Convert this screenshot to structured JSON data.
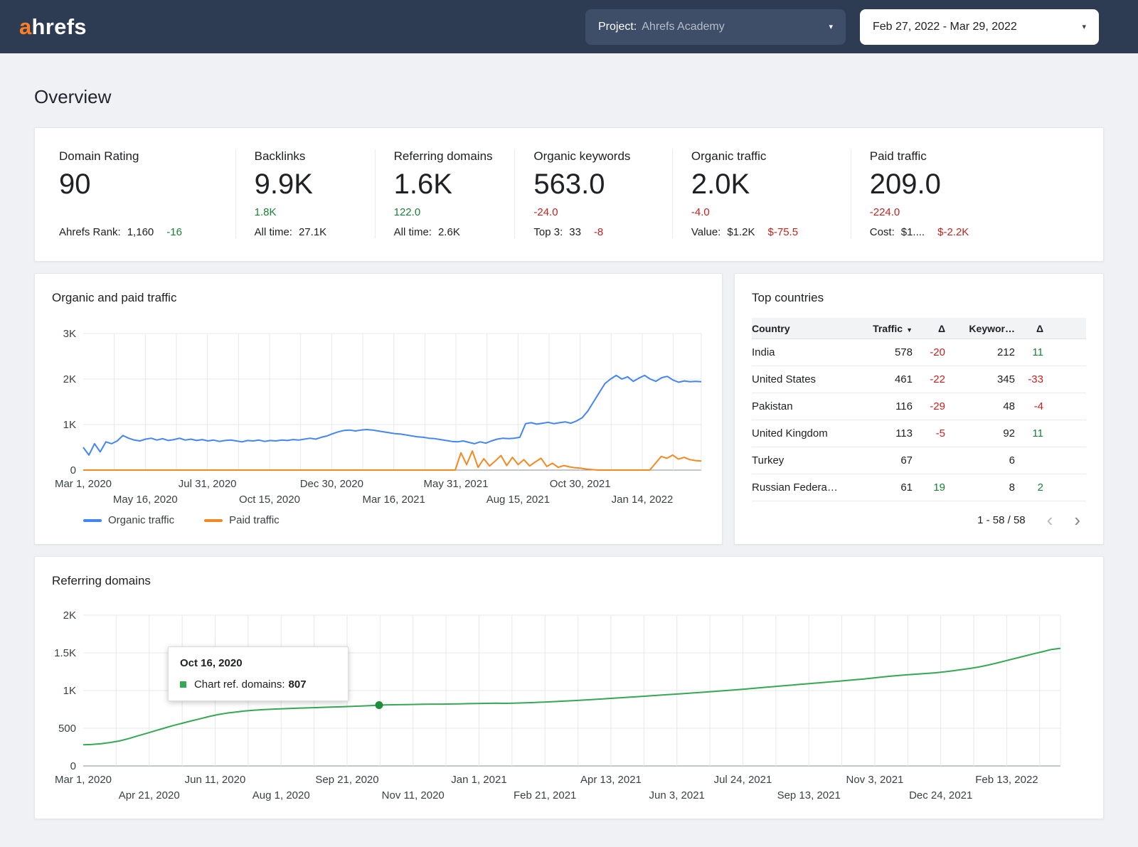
{
  "colors": {
    "navbar_bg": "#2d3b53",
    "accent_orange": "#ff8024",
    "positive_green": "#188038",
    "negative_red": "#c5221f",
    "organic_blue": "#4285f4",
    "paid_orange": "#f5891f",
    "ref_green": "#34a853"
  },
  "navbar": {
    "logo_a": "a",
    "logo_rest": "hrefs",
    "project_label": "Project:",
    "project_value": "Ahrefs Academy",
    "date_range": "Feb 27, 2022 - Mar 29, 2022"
  },
  "page_title": "Overview",
  "metrics": [
    {
      "id": "domain-rating",
      "label": "Domain Rating",
      "value": "90",
      "delta": "",
      "delta_color": "",
      "sub_label": "Ahrefs Rank:",
      "sub_value": "1,160",
      "sub_delta": "-16",
      "sub_delta_color": "green"
    },
    {
      "id": "backlinks",
      "label": "Backlinks",
      "value": "9.9K",
      "delta": "1.8K",
      "delta_color": "green",
      "sub_label": "All time:",
      "sub_value": "27.1K",
      "sub_delta": "",
      "sub_delta_color": ""
    },
    {
      "id": "referring-domains",
      "label": "Referring domains",
      "value": "1.6K",
      "delta": "122.0",
      "delta_color": "green",
      "sub_label": "All time:",
      "sub_value": "2.6K",
      "sub_delta": "",
      "sub_delta_color": ""
    },
    {
      "id": "organic-keywords",
      "label": "Organic keywords",
      "value": "563.0",
      "delta": "-24.0",
      "delta_color": "red",
      "sub_label": "Top 3:",
      "sub_value": "33",
      "sub_delta": "-8",
      "sub_delta_color": "red"
    },
    {
      "id": "organic-traffic",
      "label": "Organic traffic",
      "value": "2.0K",
      "delta": "-4.0",
      "delta_color": "red",
      "sub_label": "Value:",
      "sub_value": "$1.2K",
      "sub_delta": "$-75.5",
      "sub_delta_color": "red"
    },
    {
      "id": "paid-traffic",
      "label": "Paid traffic",
      "value": "209.0",
      "delta": "-224.0",
      "delta_color": "red",
      "sub_label": "Cost:",
      "sub_value": "$1....",
      "sub_delta": "$-2.2K",
      "sub_delta_color": "red"
    }
  ],
  "top_countries": {
    "title": "Top countries",
    "headers": [
      "Country",
      "Traffic",
      "Δ",
      "Keywor…",
      "Δ"
    ],
    "rows": [
      {
        "country": "India",
        "traffic": "578",
        "traffic_delta": "-20",
        "traffic_delta_color": "red",
        "keywords": "212",
        "kw_delta": "11",
        "kw_delta_color": "green"
      },
      {
        "country": "United States",
        "traffic": "461",
        "traffic_delta": "-22",
        "traffic_delta_color": "red",
        "keywords": "345",
        "kw_delta": "-33",
        "kw_delta_color": "red"
      },
      {
        "country": "Pakistan",
        "traffic": "116",
        "traffic_delta": "-29",
        "traffic_delta_color": "red",
        "keywords": "48",
        "kw_delta": "-4",
        "kw_delta_color": "red"
      },
      {
        "country": "United Kingdom",
        "traffic": "113",
        "traffic_delta": "-5",
        "traffic_delta_color": "red",
        "keywords": "92",
        "kw_delta": "11",
        "kw_delta_color": "green"
      },
      {
        "country": "Turkey",
        "traffic": "67",
        "traffic_delta": "",
        "traffic_delta_color": "",
        "keywords": "6",
        "kw_delta": "",
        "kw_delta_color": ""
      },
      {
        "country": "Russian Federa…",
        "traffic": "61",
        "traffic_delta": "19",
        "traffic_delta_color": "green",
        "keywords": "8",
        "kw_delta": "2",
        "kw_delta_color": "green"
      }
    ],
    "pagination": "1 - 58 / 58"
  },
  "chart_data": [
    {
      "id": "organic-paid-traffic",
      "type": "line",
      "title": "Organic and paid traffic",
      "ylim": [
        0,
        3000
      ],
      "y_ticks": [
        "0",
        "1K",
        "2K",
        "3K"
      ],
      "x_labels": [
        "Mar 1, 2020",
        "May 16, 2020",
        "Jul 31, 2020",
        "Oct 15, 2020",
        "Dec 30, 2020",
        "Mar 16, 2021",
        "May 31, 2021",
        "Aug 15, 2021",
        "Oct 30, 2021",
        "Jan 14, 2022"
      ],
      "label_step_frac": 0.1005,
      "grid": true,
      "legend_position": "bottom",
      "series": [
        {
          "name": "Organic traffic",
          "color": "#4285f4",
          "values": [
            500,
            330,
            580,
            400,
            620,
            580,
            640,
            760,
            700,
            660,
            640,
            680,
            700,
            660,
            690,
            650,
            670,
            700,
            660,
            680,
            650,
            670,
            640,
            660,
            630,
            650,
            660,
            640,
            620,
            650,
            640,
            660,
            630,
            650,
            640,
            660,
            650,
            670,
            660,
            680,
            700,
            680,
            720,
            750,
            800,
            840,
            870,
            880,
            860,
            880,
            890,
            880,
            860,
            840,
            820,
            800,
            790,
            770,
            750,
            730,
            720,
            700,
            690,
            670,
            650,
            630,
            620,
            640,
            610,
            580,
            620,
            590,
            640,
            680,
            700,
            690,
            700,
            720,
            1020,
            1040,
            1010,
            1030,
            1050,
            1020,
            1040,
            1060,
            1030,
            1080,
            1150,
            1300,
            1500,
            1700,
            1900,
            2000,
            2080,
            2000,
            2050,
            1950,
            2020,
            2080,
            2000,
            1950,
            2030,
            2060,
            1980,
            1930,
            1960,
            1940,
            1950,
            1940
          ]
        },
        {
          "name": "Paid traffic",
          "color": "#f5891f",
          "values": [
            0,
            0,
            0,
            0,
            0,
            0,
            0,
            0,
            0,
            0,
            0,
            0,
            0,
            0,
            0,
            0,
            0,
            0,
            0,
            0,
            0,
            0,
            0,
            0,
            0,
            0,
            0,
            0,
            0,
            0,
            0,
            0,
            0,
            0,
            0,
            0,
            0,
            0,
            0,
            0,
            0,
            0,
            0,
            0,
            0,
            0,
            0,
            0,
            0,
            0,
            0,
            0,
            0,
            0,
            0,
            0,
            0,
            0,
            0,
            0,
            0,
            0,
            0,
            0,
            0,
            0,
            380,
            120,
            420,
            60,
            250,
            90,
            200,
            320,
            100,
            280,
            120,
            230,
            90,
            180,
            260,
            80,
            150,
            60,
            100,
            70,
            50,
            40,
            20,
            10,
            0,
            0,
            0,
            0,
            0,
            0,
            0,
            0,
            0,
            0,
            150,
            300,
            260,
            330,
            240,
            280,
            230,
            210,
            200
          ]
        }
      ]
    },
    {
      "id": "referring-domains",
      "type": "line",
      "title": "Referring domains",
      "ylim": [
        0,
        2000
      ],
      "y_ticks": [
        "0",
        "500",
        "1K",
        "1.5K",
        "2K"
      ],
      "x_labels": [
        "Mar 1, 2020",
        "Apr 21, 2020",
        "Jun 11, 2020",
        "Aug 1, 2020",
        "Sep 21, 2020",
        "Nov 11, 2020",
        "Jan 1, 2021",
        "Feb 21, 2021",
        "Apr 13, 2021",
        "Jun 3, 2021",
        "Jul 24, 2021",
        "Sep 13, 2021",
        "Nov 3, 2021",
        "Dec 24, 2021",
        "Feb 13, 2022"
      ],
      "label_step_frac": 0.0675,
      "grid": true,
      "series": [
        {
          "name": "Chart ref. domains",
          "color": "#34a853",
          "values": [
            280,
            285,
            295,
            310,
            330,
            360,
            395,
            430,
            465,
            500,
            535,
            565,
            595,
            625,
            655,
            680,
            700,
            715,
            728,
            738,
            746,
            752,
            757,
            762,
            766,
            770,
            774,
            778,
            782,
            786,
            790,
            795,
            800,
            807,
            810,
            812,
            814,
            816,
            818,
            820,
            820,
            822,
            824,
            826,
            828,
            830,
            832,
            830,
            833,
            836,
            840,
            845,
            850,
            856,
            862,
            868,
            875,
            882,
            890,
            897,
            905,
            912,
            920,
            928,
            936,
            944,
            952,
            960,
            968,
            976,
            985,
            994,
            1003,
            1012,
            1022,
            1032,
            1042,
            1052,
            1062,
            1072,
            1082,
            1092,
            1102,
            1112,
            1122,
            1132,
            1142,
            1152,
            1165,
            1178,
            1190,
            1200,
            1210,
            1218,
            1226,
            1235,
            1248,
            1262,
            1278,
            1295,
            1315,
            1340,
            1368,
            1398,
            1428,
            1458,
            1488,
            1515,
            1545,
            1560
          ]
        }
      ],
      "highlight": {
        "index": 33,
        "date": "Oct 16, 2020",
        "label": "Chart ref. domains:",
        "value": "807"
      }
    }
  ]
}
